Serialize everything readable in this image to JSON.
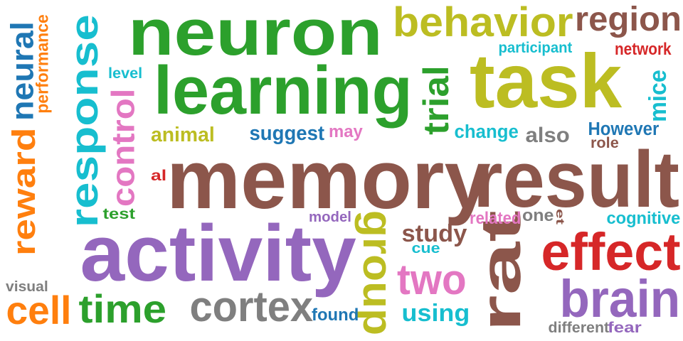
{
  "palette": {
    "green": "#2ca02c",
    "olive": "#bcbd22",
    "brown": "#8c564b",
    "red": "#d62728",
    "blue": "#1f77b4",
    "orange": "#ff7f0e",
    "purple": "#9467bd",
    "pink": "#e377c2",
    "cyan": "#17becf",
    "gray": "#7f7f7f"
  },
  "words": [
    {
      "id": "neuron",
      "text": "neuron",
      "color": "green"
    },
    {
      "id": "behavior",
      "text": "behavior",
      "color": "olive"
    },
    {
      "id": "region",
      "text": "region",
      "color": "brown"
    },
    {
      "id": "learning",
      "text": "learning",
      "color": "green"
    },
    {
      "id": "task",
      "text": "task",
      "color": "olive"
    },
    {
      "id": "memory",
      "text": "memory",
      "color": "brown"
    },
    {
      "id": "result",
      "text": "result",
      "color": "brown"
    },
    {
      "id": "activity",
      "text": "activity",
      "color": "purple"
    },
    {
      "id": "rat",
      "text": "rat",
      "color": "brown"
    },
    {
      "id": "effect",
      "text": "effect",
      "color": "red"
    },
    {
      "id": "brain",
      "text": "brain",
      "color": "purple"
    },
    {
      "id": "cortex",
      "text": "cortex",
      "color": "gray"
    },
    {
      "id": "time",
      "text": "time",
      "color": "green"
    },
    {
      "id": "cell",
      "text": "cell",
      "color": "orange"
    },
    {
      "id": "two",
      "text": "two",
      "color": "pink"
    },
    {
      "id": "group",
      "text": "group",
      "color": "olive"
    },
    {
      "id": "response",
      "text": "response",
      "color": "cyan"
    },
    {
      "id": "reward",
      "text": "reward",
      "color": "orange"
    },
    {
      "id": "neural",
      "text": "neural",
      "color": "blue"
    },
    {
      "id": "performance",
      "text": "performance",
      "color": "orange"
    },
    {
      "id": "control",
      "text": "control",
      "color": "pink"
    },
    {
      "id": "trial",
      "text": "trial",
      "color": "green"
    },
    {
      "id": "mice",
      "text": "mice",
      "color": "cyan"
    },
    {
      "id": "participant",
      "text": "participant",
      "color": "cyan"
    },
    {
      "id": "network",
      "text": "network",
      "color": "red"
    },
    {
      "id": "level",
      "text": "level",
      "color": "cyan"
    },
    {
      "id": "animal",
      "text": "animal",
      "color": "olive"
    },
    {
      "id": "suggest",
      "text": "suggest",
      "color": "blue"
    },
    {
      "id": "may",
      "text": "may",
      "color": "pink"
    },
    {
      "id": "change",
      "text": "change",
      "color": "cyan"
    },
    {
      "id": "also",
      "text": "also",
      "color": "gray"
    },
    {
      "id": "however",
      "text": "However",
      "color": "blue"
    },
    {
      "id": "role",
      "text": "role",
      "color": "brown"
    },
    {
      "id": "al",
      "text": "al",
      "color": "red"
    },
    {
      "id": "test",
      "text": "test",
      "color": "green"
    },
    {
      "id": "model",
      "text": "model",
      "color": "purple"
    },
    {
      "id": "related",
      "text": "related",
      "color": "pink"
    },
    {
      "id": "one",
      "text": "one",
      "color": "gray"
    },
    {
      "id": "et",
      "text": "et",
      "color": "brown"
    },
    {
      "id": "cognitive",
      "text": "cognitive",
      "color": "cyan"
    },
    {
      "id": "study",
      "text": "study",
      "color": "brown"
    },
    {
      "id": "cue",
      "text": "cue",
      "color": "cyan"
    },
    {
      "id": "visual",
      "text": "visual",
      "color": "gray"
    },
    {
      "id": "found",
      "text": "found",
      "color": "blue"
    },
    {
      "id": "using",
      "text": "using",
      "color": "cyan"
    },
    {
      "id": "different",
      "text": "different",
      "color": "gray"
    },
    {
      "id": "fear",
      "text": "fear",
      "color": "purple"
    }
  ]
}
